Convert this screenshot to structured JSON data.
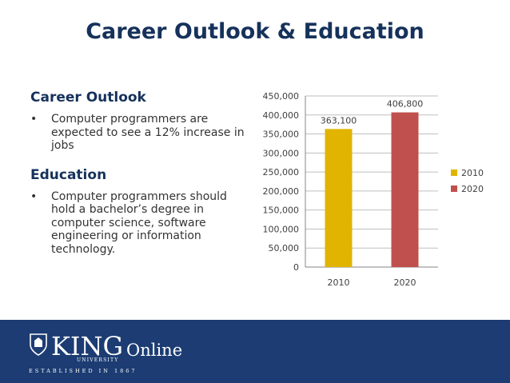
{
  "slide": {
    "title": "Career Outlook & Education"
  },
  "sections": [
    {
      "heading": "Career Outlook",
      "bullets": [
        "Computer programmers are expected to see a 12% increase in jobs"
      ]
    },
    {
      "heading": "Education",
      "bullets": [
        "Computer programmers should hold a bachelor’s degree in computer science, software engineering or information technology."
      ]
    }
  ],
  "footer": {
    "logo_word": "KING",
    "logo_university": "UNIVERSITY",
    "logo_online": "Online",
    "logo_established": "ESTABLISHED IN 1867",
    "band_color": "#1c3c73"
  },
  "chart_data": {
    "type": "bar",
    "categories": [
      "2010",
      "2020"
    ],
    "series": [
      {
        "name": "2010",
        "values": [
          363100,
          null
        ],
        "color": "#e0b400"
      },
      {
        "name": "2020",
        "values": [
          null,
          406800
        ],
        "color": "#c0504d"
      }
    ],
    "data_labels": [
      "363,100",
      "406,800"
    ],
    "y_ticks": [
      "0",
      "50,000",
      "100,000",
      "150,000",
      "200,000",
      "250,000",
      "300,000",
      "350,000",
      "400,000",
      "450,000"
    ],
    "ylim": [
      0,
      450000
    ],
    "grid": true,
    "legend_position": "right"
  }
}
